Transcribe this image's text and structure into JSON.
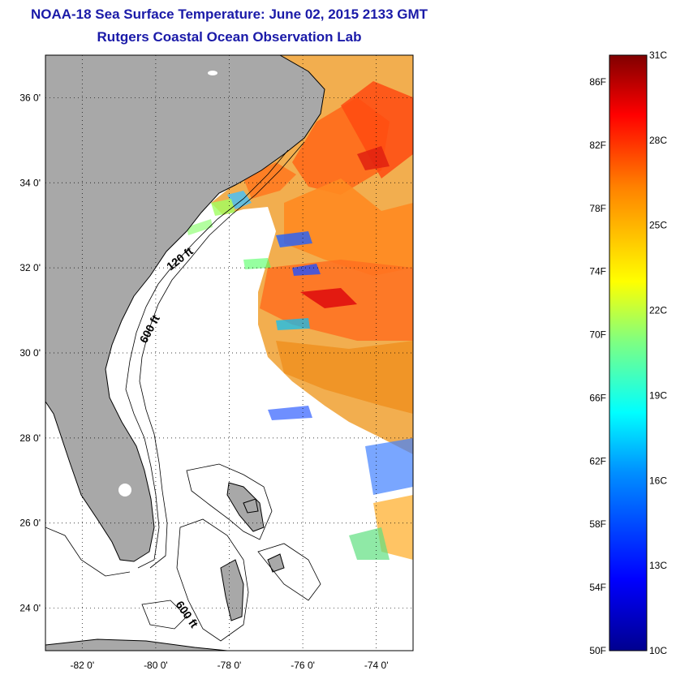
{
  "header": {
    "title": "NOAA-18 Sea Surface Temperature:  June 02, 2015 2133 GMT",
    "subtitle": "Rutgers Coastal Ocean Observation Lab"
  },
  "map": {
    "lon_range": [
      -83,
      -73
    ],
    "lat_range": [
      23,
      37
    ],
    "lat_ticks": [
      {
        "value": 36,
        "label": "36 0'"
      },
      {
        "value": 34,
        "label": "34 0'"
      },
      {
        "value": 32,
        "label": "32 0'"
      },
      {
        "value": 30,
        "label": "30 0'"
      },
      {
        "value": 28,
        "label": "28 0'"
      },
      {
        "value": 26,
        "label": "26 0'"
      },
      {
        "value": 24,
        "label": "24 0'"
      }
    ],
    "lon_ticks": [
      {
        "value": -82,
        "label": "-82 0'"
      },
      {
        "value": -80,
        "label": "-80 0'"
      },
      {
        "value": -78,
        "label": "-78 0'"
      },
      {
        "value": -76,
        "label": "-76 0'"
      },
      {
        "value": -74,
        "label": "-74 0'"
      }
    ],
    "grid": "dotted",
    "land_color": "#a8a8a8",
    "isobath_labels": [
      "120 ft",
      "600 ft",
      "600 ft"
    ]
  },
  "colorbar": {
    "f_labels": [
      "86F",
      "82F",
      "78F",
      "74F",
      "70F",
      "66F",
      "62F",
      "58F",
      "54F",
      "50F"
    ],
    "c_labels": [
      "31C",
      "28C",
      "25C",
      "22C",
      "19C",
      "16C",
      "13C",
      "10C"
    ],
    "range_c": [
      10,
      31
    ],
    "colormap": "jet",
    "colors": [
      "#00008f",
      "#0000ff",
      "#0080ff",
      "#00ffff",
      "#80ff80",
      "#ffff00",
      "#ff8000",
      "#ff0000",
      "#800000"
    ]
  }
}
